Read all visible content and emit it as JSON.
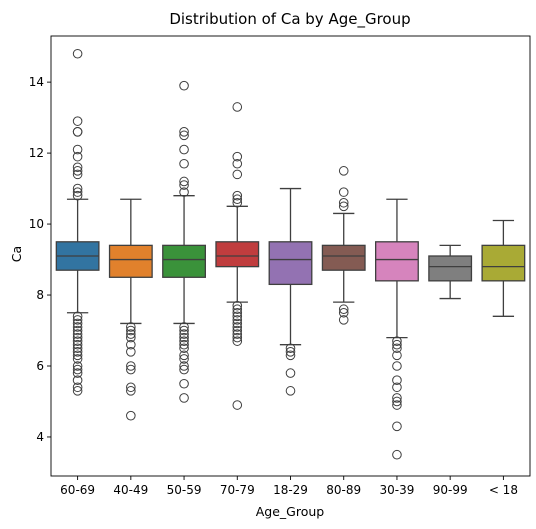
{
  "chart_data": {
    "type": "box",
    "title": "Distribution of Ca by Age_Group",
    "xlabel": "Age_Group",
    "ylabel": "Ca",
    "ylim": [
      2.9,
      15.3
    ],
    "yticks": [
      4,
      6,
      8,
      10,
      12,
      14
    ],
    "grid": false,
    "legend": "none",
    "boxes": [
      {
        "category": "60-69",
        "color": "#3274a1",
        "q1": 8.7,
        "median": 9.1,
        "q3": 9.5,
        "whisker_low": 7.5,
        "whisker_high": 10.7,
        "outliers": [
          14.8,
          12.9,
          12.6,
          12.6,
          12.1,
          11.9,
          11.6,
          11.5,
          11.4,
          11.0,
          10.9,
          10.8,
          7.4,
          7.3,
          7.2,
          7.1,
          7.0,
          6.9,
          6.8,
          6.7,
          6.6,
          6.5,
          6.4,
          6.3,
          6.2,
          6.0,
          5.9,
          5.8,
          5.6,
          5.4,
          5.3
        ]
      },
      {
        "category": "40-49",
        "color": "#e1812c",
        "q1": 8.5,
        "median": 9.0,
        "q3": 9.4,
        "whisker_low": 7.2,
        "whisker_high": 10.7,
        "outliers": [
          7.1,
          7.0,
          6.9,
          6.8,
          6.6,
          6.4,
          6.0,
          5.9,
          5.4,
          5.3,
          4.6
        ]
      },
      {
        "category": "50-59",
        "color": "#3a923a",
        "q1": 8.5,
        "median": 9.0,
        "q3": 9.4,
        "whisker_low": 7.2,
        "whisker_high": 10.8,
        "outliers": [
          13.9,
          12.6,
          12.5,
          12.1,
          11.7,
          11.2,
          11.1,
          10.9,
          7.1,
          7.0,
          6.9,
          6.8,
          6.7,
          6.6,
          6.5,
          6.3,
          6.2,
          6.0,
          5.9,
          5.5,
          5.1
        ]
      },
      {
        "category": "70-79",
        "color": "#c03d3e",
        "q1": 8.8,
        "median": 9.1,
        "q3": 9.5,
        "whisker_low": 7.8,
        "whisker_high": 10.5,
        "outliers": [
          13.3,
          11.9,
          11.7,
          11.4,
          10.8,
          10.7,
          10.6,
          7.7,
          7.6,
          7.5,
          7.4,
          7.3,
          7.2,
          7.1,
          7.0,
          6.9,
          6.8,
          6.7,
          4.9
        ]
      },
      {
        "category": "18-29",
        "color": "#9372b2",
        "q1": 8.3,
        "median": 9.0,
        "q3": 9.5,
        "whisker_low": 6.6,
        "whisker_high": 11.0,
        "outliers": [
          6.5,
          6.4,
          6.3,
          5.8,
          5.3
        ]
      },
      {
        "category": "80-89",
        "color": "#845b53",
        "q1": 8.7,
        "median": 9.1,
        "q3": 9.4,
        "whisker_low": 7.8,
        "whisker_high": 10.3,
        "outliers": [
          11.5,
          10.9,
          10.6,
          10.5,
          7.6,
          7.5,
          7.3
        ]
      },
      {
        "category": "30-39",
        "color": "#d684bd",
        "q1": 8.4,
        "median": 9.0,
        "q3": 9.5,
        "whisker_low": 6.8,
        "whisker_high": 10.7,
        "outliers": [
          6.7,
          6.6,
          6.5,
          6.3,
          6.0,
          5.6,
          5.4,
          5.1,
          5.0,
          4.9,
          4.3,
          3.5
        ]
      },
      {
        "category": "90-99",
        "color": "#7f7f7f",
        "q1": 8.4,
        "median": 8.8,
        "q3": 9.1,
        "whisker_low": 7.9,
        "whisker_high": 9.4,
        "outliers": []
      },
      {
        "category": "< 18",
        "color": "#a9aa35",
        "q1": 8.4,
        "median": 8.8,
        "q3": 9.4,
        "whisker_low": 7.4,
        "whisker_high": 10.1,
        "outliers": []
      }
    ]
  }
}
